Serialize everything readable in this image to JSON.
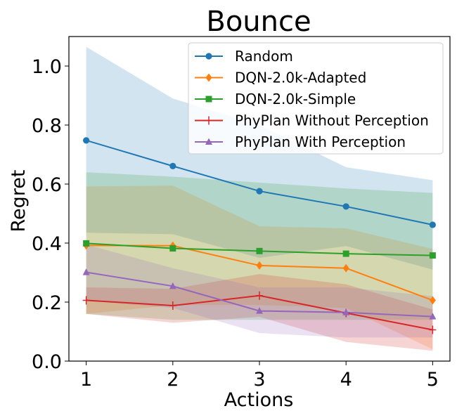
{
  "chart_data": {
    "type": "line",
    "title": "Bounce",
    "xlabel": "Actions",
    "ylabel": "Regret",
    "x": [
      1,
      2,
      3,
      4,
      5
    ],
    "xlim": [
      0.8,
      5.2
    ],
    "ylim": [
      0.0,
      1.1
    ],
    "xticks": [
      "1",
      "2",
      "3",
      "4",
      "5"
    ],
    "yticks": [
      "0.0",
      "0.2",
      "0.4",
      "0.6",
      "0.8",
      "1.0"
    ],
    "legend_position": "top-right",
    "series": [
      {
        "name": "Random",
        "color": "#1f77b4",
        "marker": "circle",
        "values": [
          0.748,
          0.661,
          0.576,
          0.524,
          0.462
        ],
        "lower": [
          0.435,
          0.43,
          0.35,
          0.39,
          0.31
        ],
        "upper": [
          1.065,
          0.89,
          0.8,
          0.657,
          0.613
        ]
      },
      {
        "name": "DQN-2.0k-Adapted",
        "color": "#ff7f0e",
        "marker": "diamond",
        "values": [
          0.392,
          0.391,
          0.324,
          0.315,
          0.206
        ],
        "lower": [
          0.16,
          0.19,
          0.19,
          0.18,
          0.04
        ],
        "upper": [
          0.592,
          0.595,
          0.457,
          0.45,
          0.38
        ]
      },
      {
        "name": "DQN-2.0k-Simple",
        "color": "#2ca02c",
        "marker": "square",
        "values": [
          0.399,
          0.382,
          0.373,
          0.364,
          0.358
        ],
        "lower": [
          0.16,
          0.14,
          0.14,
          0.14,
          0.14
        ],
        "upper": [
          0.64,
          0.625,
          0.605,
          0.585,
          0.57
        ]
      },
      {
        "name": "PhyPlan Without Perception",
        "color": "#d62728",
        "marker": "plus",
        "values": [
          0.206,
          0.188,
          0.222,
          0.163,
          0.106
        ],
        "lower": [
          0.16,
          0.13,
          0.15,
          0.065,
          0.035
        ],
        "upper": [
          0.25,
          0.245,
          0.295,
          0.26,
          0.175
        ]
      },
      {
        "name": "PhyPlan With Perception",
        "color": "#9467bd",
        "marker": "triangle",
        "values": [
          0.301,
          0.254,
          0.17,
          0.165,
          0.151
        ],
        "lower": [
          0.205,
          0.18,
          0.095,
          0.08,
          0.08
        ],
        "upper": [
          0.395,
          0.315,
          0.25,
          0.25,
          0.22
        ]
      }
    ]
  }
}
